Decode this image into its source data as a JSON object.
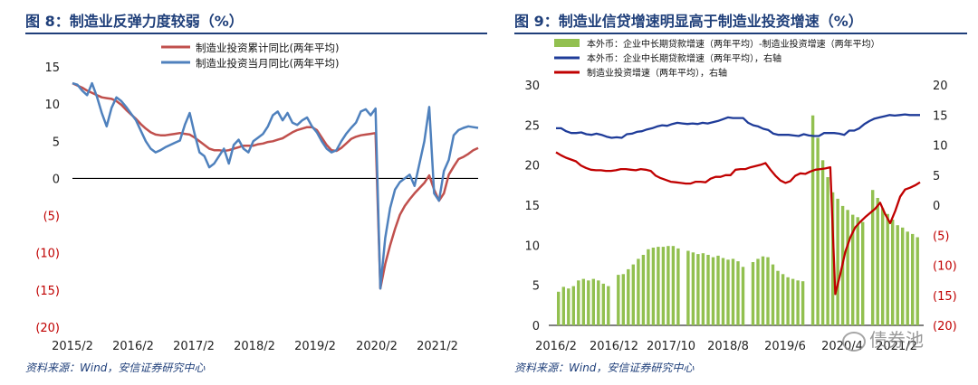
{
  "left": {
    "title": "图 8：制造业反弹力度较弱（%）",
    "source": "资料来源：Wind，安信证券研究中心"
  },
  "right": {
    "title": "图 9：制造业信贷增速明显高于制造业投资增速（%）",
    "source": "资料来源：Wind，安信证券研究中心"
  },
  "watermark": "债券池",
  "colors": {
    "navy": "#1f3f7a",
    "red": "#c00000",
    "blue": "#4f81bd",
    "darkblue": "#1f3c99",
    "green": "#92c050"
  },
  "chart_data": [
    {
      "type": "line",
      "ylim": [
        -20,
        15
      ],
      "y_ticks": [
        15,
        10,
        5,
        0,
        -5,
        -10,
        -15,
        -20
      ],
      "y_tick_labels": [
        "15",
        "10",
        "5",
        "0",
        "(5)",
        "(10)",
        "(15)",
        "(20)"
      ],
      "x_tick_labels": [
        "2015/2",
        "2016/2",
        "2017/2",
        "2018/2",
        "2019/2",
        "2020/2",
        "2021/2"
      ],
      "legend_position": "top-right",
      "grid": false,
      "series": [
        {
          "name": "制造业投资累计同比(两年平均)",
          "color": "#c0504d",
          "values": [
            12.8,
            12.5,
            12.2,
            11.8,
            11.5,
            11.2,
            10.9,
            10.8,
            10.7,
            10.4,
            9.9,
            9.2,
            8.6,
            8.0,
            7.3,
            6.7,
            6.2,
            5.9,
            5.8,
            5.8,
            5.9,
            6.0,
            6.1,
            6.0,
            5.9,
            5.5,
            5.0,
            4.5,
            4.0,
            3.8,
            3.8,
            3.7,
            3.8,
            4.0,
            4.2,
            4.4,
            4.4,
            4.4,
            4.6,
            4.7,
            4.9,
            5.0,
            5.2,
            5.4,
            5.8,
            6.2,
            6.5,
            6.7,
            6.9,
            6.9,
            6.5,
            5.5,
            4.5,
            3.8,
            3.7,
            4.1,
            4.7,
            5.3,
            5.6,
            5.8,
            5.9,
            6.0,
            6.1,
            -14.8,
            -11.5,
            -9.0,
            -6.8,
            -4.9,
            -3.7,
            -2.8,
            -2.0,
            -1.3,
            -0.6,
            0.4,
            -1.5,
            -3.0,
            -2.0,
            0.5,
            1.6,
            2.6,
            2.9,
            3.3,
            3.8,
            4.1
          ]
        },
        {
          "name": "制造业投资当月同比(两年平均)",
          "color": "#4f81bd",
          "values": [
            12.8,
            12.6,
            11.8,
            11.2,
            12.8,
            11.0,
            8.8,
            7.0,
            9.5,
            10.9,
            10.4,
            9.6,
            8.7,
            7.8,
            6.4,
            5.0,
            4.0,
            3.5,
            3.8,
            4.2,
            4.5,
            4.8,
            5.1,
            7.2,
            8.8,
            6.0,
            3.5,
            3.0,
            1.5,
            2.0,
            3.0,
            4.0,
            2.0,
            4.5,
            5.2,
            4.0,
            3.5,
            5.0,
            5.5,
            6.0,
            7.0,
            8.5,
            9.0,
            7.8,
            8.8,
            7.5,
            7.2,
            7.8,
            8.2,
            7.0,
            6.2,
            5.0,
            4.0,
            3.5,
            3.8,
            5.0,
            6.0,
            6.8,
            7.5,
            9.0,
            9.3,
            8.5,
            9.4,
            -14.8,
            -8.0,
            -4.0,
            -1.5,
            -0.5,
            0.0,
            0.5,
            -1.0,
            2.0,
            5.0,
            9.6,
            -2.0,
            -3.0,
            1.0,
            2.5,
            5.8,
            6.5,
            6.8,
            7.0,
            6.9,
            6.8
          ]
        }
      ]
    },
    {
      "type": "bar+line",
      "ylim_left": [
        0,
        30
      ],
      "ylim_right": [
        -20,
        20
      ],
      "y_ticks_left": [
        0,
        5,
        10,
        15,
        20,
        25,
        30
      ],
      "y_ticks_right": [
        20,
        15,
        10,
        5,
        0,
        -5,
        -10,
        -15,
        -20
      ],
      "y_tick_labels_right": [
        "20",
        "15",
        "10",
        "5",
        "0",
        "(5)",
        "(10)",
        "(15)",
        "(20)"
      ],
      "x_tick_labels": [
        "2016/2",
        "2016/12",
        "2017/10",
        "2018/8",
        "2019/6",
        "2020/4",
        "2021/2"
      ],
      "legend_position": "top",
      "series": [
        {
          "name": "本外币：企业中长期贷款增速（两年平均）-制造业投资增速（两年平均）",
          "type": "bar",
          "axis": "left",
          "color": "#92c050",
          "values": [
            4.2,
            4.8,
            4.6,
            4.9,
            5.6,
            5.8,
            5.6,
            5.8,
            5.6,
            5.2,
            4.9,
            null,
            6.3,
            6.4,
            7.0,
            7.6,
            8.3,
            8.8,
            9.5,
            9.7,
            9.8,
            9.8,
            9.9,
            9.9,
            9.6,
            null,
            9.3,
            9.1,
            8.9,
            9.0,
            8.8,
            8.5,
            8.7,
            8.4,
            8.2,
            8.3,
            8.0,
            7.3,
            null,
            7.9,
            8.3,
            8.6,
            8.5,
            7.6,
            6.8,
            6.4,
            6.0,
            5.8,
            5.6,
            5.5,
            null,
            26.2,
            23.4,
            20.6,
            18.5,
            16.6,
            15.8,
            14.9,
            14.4,
            13.8,
            13.5,
            12.9,
            null,
            16.9,
            15.9,
            14.6,
            13.9,
            13.2,
            12.5,
            12.2,
            11.7,
            11.4,
            11.0
          ]
        },
        {
          "name": "本外币：企业中长期贷款增速（两年平均），右轴",
          "type": "line",
          "axis": "right",
          "color": "#1f3c99",
          "values": [
            12.8,
            12.8,
            12.3,
            12.0,
            12.0,
            12.1,
            11.8,
            11.7,
            11.9,
            11.7,
            11.4,
            11.2,
            11.3,
            11.2,
            11.8,
            11.9,
            12.2,
            12.3,
            12.6,
            12.8,
            13.1,
            13.3,
            13.2,
            13.5,
            13.7,
            13.6,
            13.5,
            13.6,
            13.5,
            13.7,
            13.6,
            13.8,
            14.0,
            14.3,
            14.6,
            14.5,
            14.5,
            14.5,
            13.7,
            13.3,
            13.1,
            12.7,
            12.5,
            11.9,
            11.7,
            11.7,
            11.7,
            11.6,
            11.5,
            11.8,
            11.6,
            11.5,
            11.5,
            12.0,
            12.0,
            12.0,
            11.9,
            11.7,
            12.4,
            12.4,
            12.8,
            13.5,
            14.0,
            14.4,
            14.6,
            14.8,
            15.0,
            14.9,
            15.0,
            15.1,
            15.0,
            15.0,
            15.0
          ]
        },
        {
          "name": "制造业投资增速（两年平均），右轴",
          "type": "line",
          "axis": "right",
          "color": "#c00000",
          "values": [
            8.8,
            8.3,
            7.9,
            7.6,
            7.3,
            6.6,
            6.2,
            5.9,
            5.8,
            5.8,
            5.7,
            5.7,
            5.8,
            6.0,
            6.0,
            5.9,
            5.8,
            6.0,
            5.9,
            5.7,
            4.9,
            4.5,
            4.2,
            3.9,
            3.8,
            3.7,
            3.6,
            3.6,
            3.9,
            3.9,
            3.8,
            4.4,
            4.7,
            4.7,
            5.0,
            5.0,
            5.9,
            6.0,
            6.0,
            6.3,
            6.5,
            6.7,
            7.0,
            5.9,
            4.9,
            4.1,
            3.7,
            4.0,
            4.9,
            5.3,
            5.2,
            5.6,
            5.9,
            6.0,
            6.1,
            6.3,
            -14.8,
            -11.5,
            -7.8,
            -5.4,
            -3.7,
            -2.8,
            -2.0,
            -1.3,
            -0.6,
            0.4,
            -1.5,
            -3.0,
            -1.0,
            1.4,
            2.6,
            2.9,
            3.3,
            3.8
          ]
        }
      ]
    }
  ]
}
